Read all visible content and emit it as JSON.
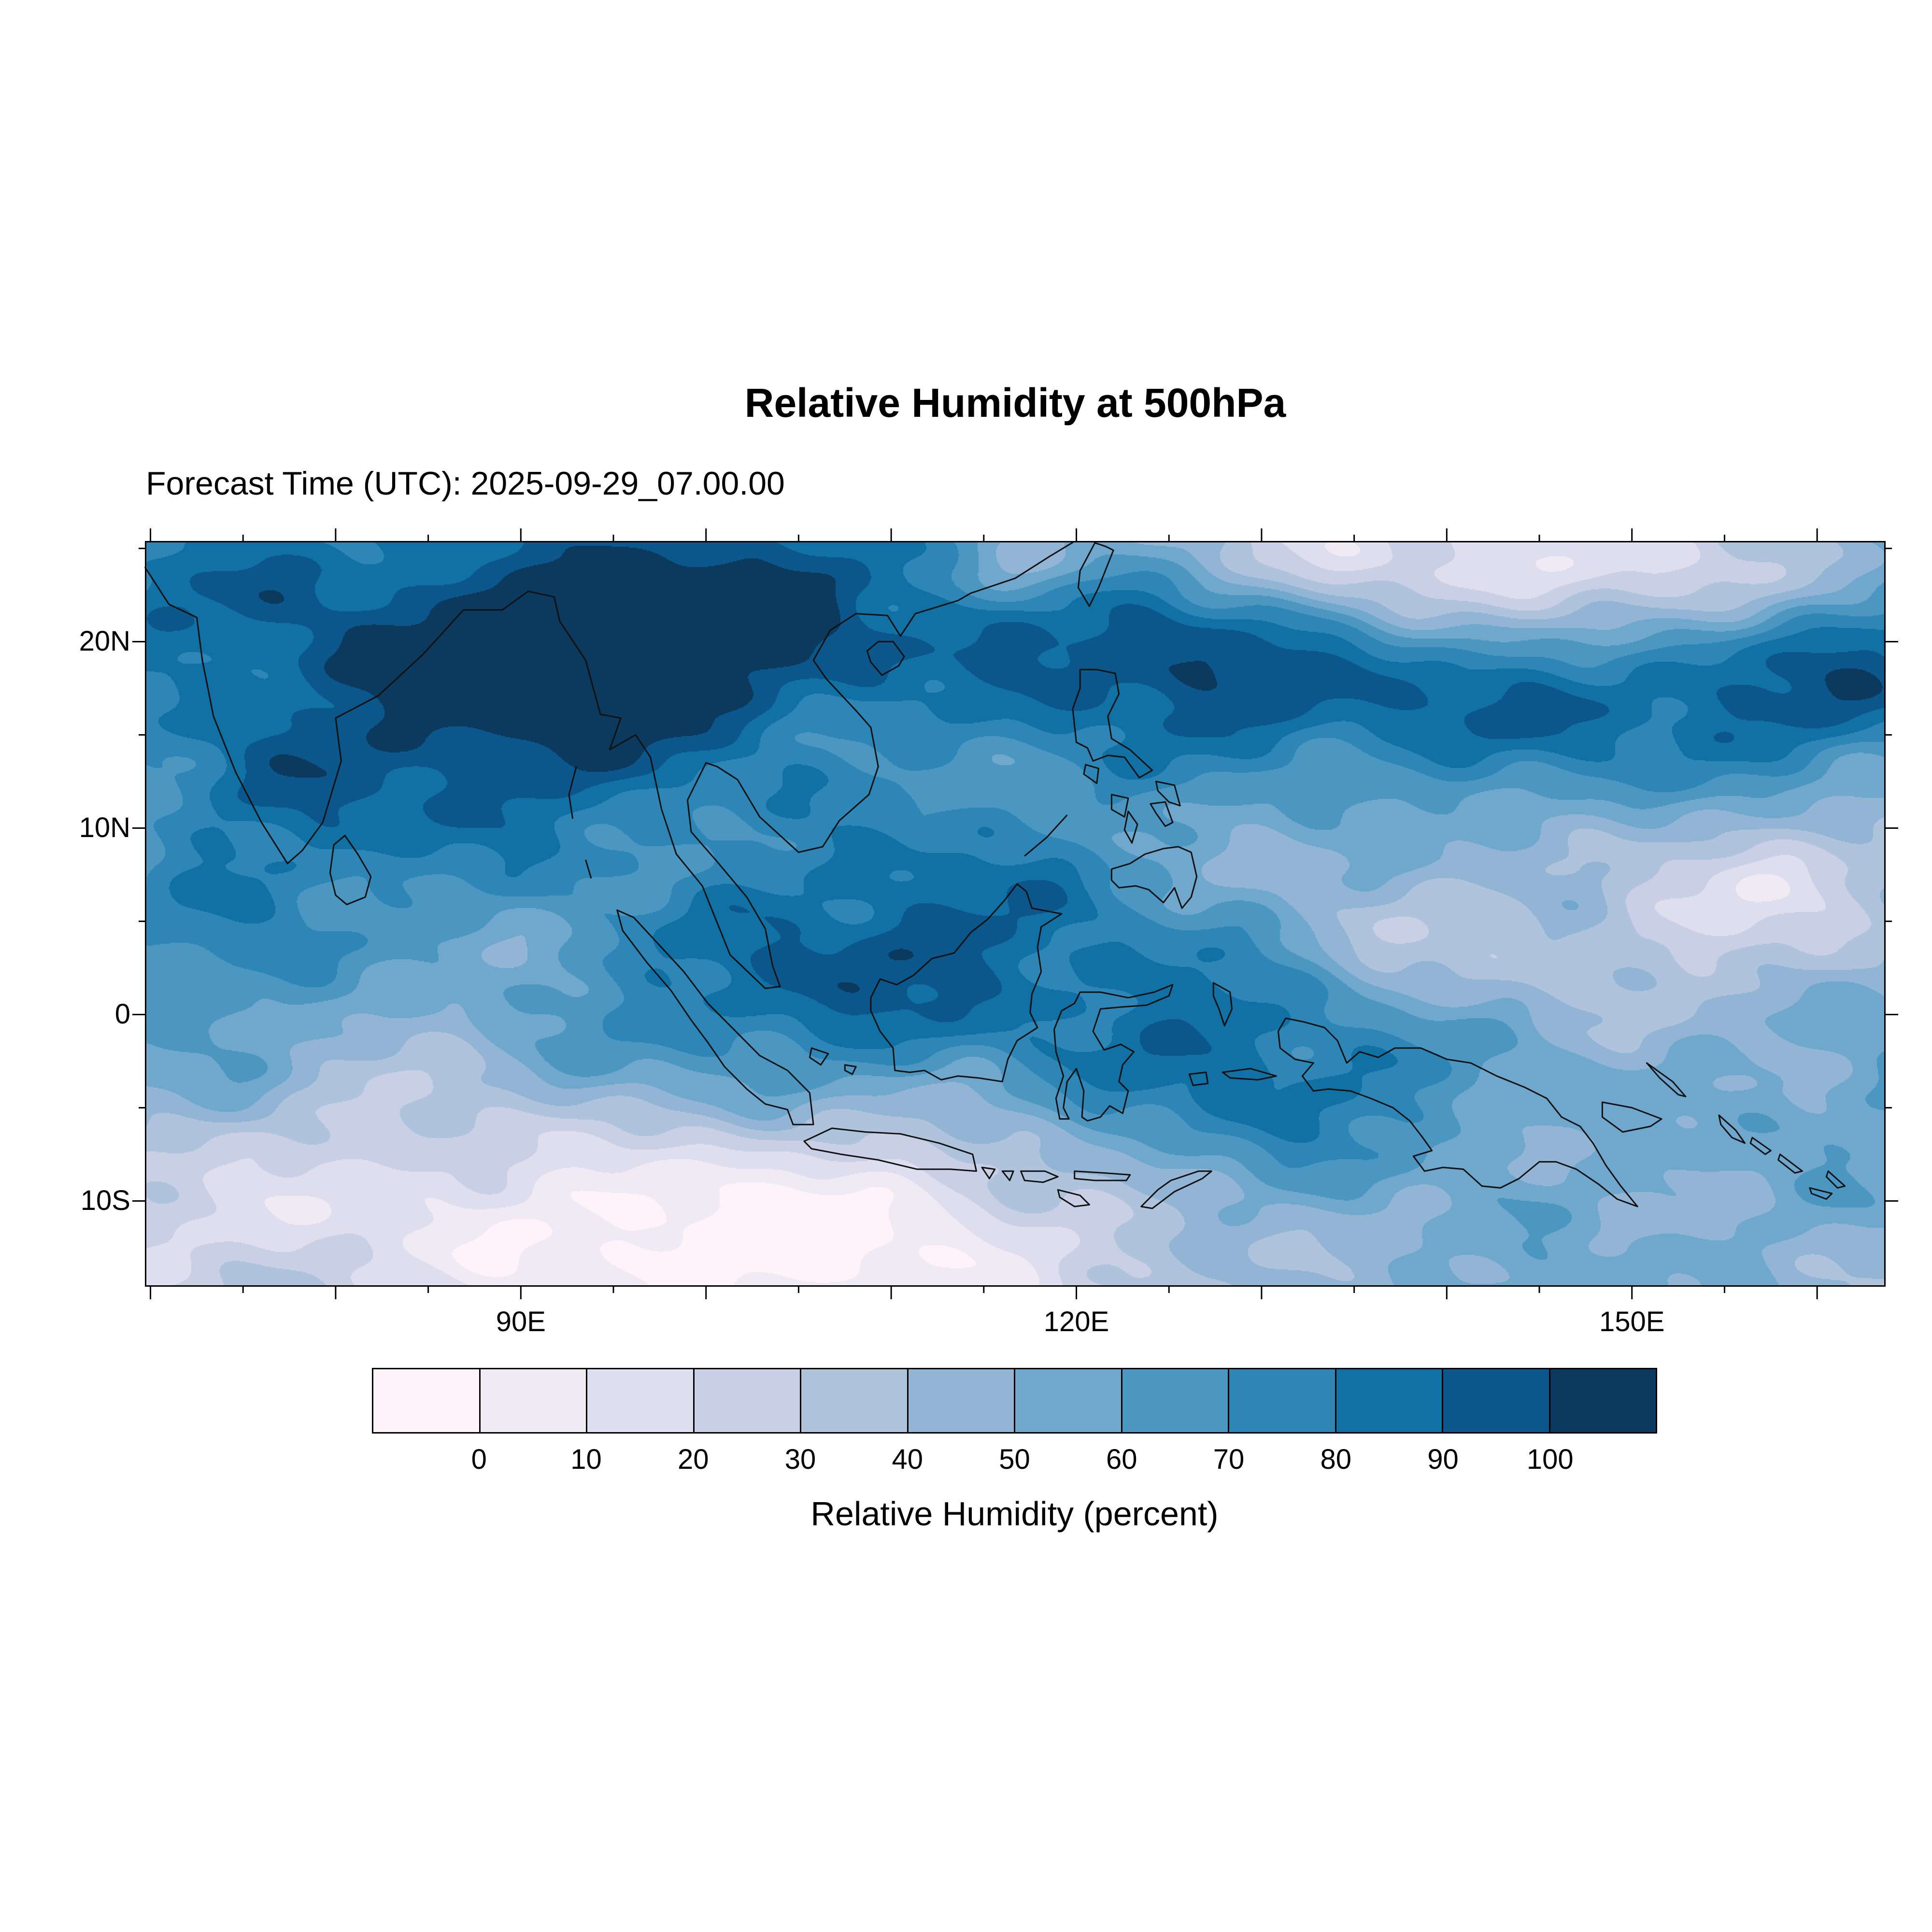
{
  "chart_data": {
    "type": "heatmap",
    "title": "Relative Humidity at 500hPa",
    "subtitle": "Forecast Time (UTC): 2025-09-29_07.00.00",
    "variable": "Relative Humidity",
    "units": "percent",
    "pressure_level": "500hPa",
    "projection": "lat-lon",
    "extent": {
      "lon_min": 69.7,
      "lon_max": 163.7,
      "lat_min": -14.6,
      "lat_max": 25.4
    },
    "x_ticks": [
      {
        "value": 90,
        "label": "90E"
      },
      {
        "value": 120,
        "label": "120E"
      },
      {
        "value": 150,
        "label": "150E"
      }
    ],
    "y_ticks": [
      {
        "value": 20,
        "label": "20N"
      },
      {
        "value": 10,
        "label": "10N"
      },
      {
        "value": 0,
        "label": "0"
      },
      {
        "value": -10,
        "label": "10S"
      }
    ],
    "grid": false,
    "legend_position": "bottom",
    "colorbar": {
      "label": "Relative Humidity (percent)",
      "levels": [
        0,
        10,
        20,
        30,
        40,
        50,
        60,
        70,
        80,
        90,
        100
      ],
      "tick_labels": [
        "0",
        "10",
        "20",
        "30",
        "40",
        "50",
        "60",
        "70",
        "80",
        "90",
        "100"
      ],
      "colors": [
        "#fdf3f9",
        "#efeaf4",
        "#dfdeee",
        "#c9cfe4",
        "#afc3dd",
        "#92b5d5",
        "#6fa7cd",
        "#4b97c2",
        "#2e86b7",
        "#1171a5",
        "#0b568a",
        "#0c3a5e"
      ]
    }
  }
}
